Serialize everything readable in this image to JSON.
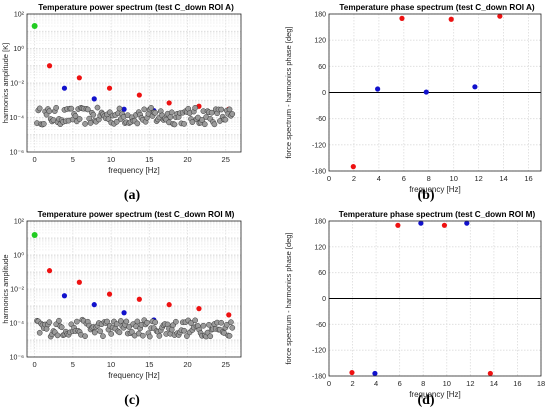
{
  "chart_data": [
    {
      "id": "a",
      "type": "scatter",
      "title": "Temperature power spectrum (test C_down ROI A)",
      "xlabel": "frequency [Hz]",
      "ylabel": "harmonics amplitude [K]",
      "caption": "(a)",
      "yscale": "log",
      "xlim": [
        -1,
        27
      ],
      "ylim": [
        1e-06,
        100
      ],
      "xticks": [
        0,
        5,
        10,
        15,
        20,
        25
      ],
      "xtick_labels": [
        "0",
        "5",
        "10",
        "15",
        "20",
        "25"
      ],
      "yticks": [
        1e-06,
        0.0001,
        0.01,
        1,
        100
      ],
      "ytick_labels": [
        "10⁻⁶",
        "10⁻⁴",
        "10⁻²",
        "10⁰",
        "10²"
      ],
      "grid": true,
      "series": [
        {
          "color": "#22cc22",
          "x": [
            0
          ],
          "y": [
            20
          ]
        },
        {
          "color": "#ee1111",
          "x": [
            1.95,
            5.85,
            9.8,
            13.7,
            17.6,
            21.5,
            25.4
          ],
          "y": [
            0.1,
            0.02,
            0.005,
            0.002,
            0.0007,
            0.00045,
            0.0003
          ]
        },
        {
          "color": "#1111cc",
          "x": [
            3.9,
            7.8,
            11.7,
            15.6
          ],
          "y": [
            0.005,
            0.0012,
            0.0003,
            0.00025
          ]
        },
        {
          "color": "#888888",
          "noise": true,
          "y_center": 0.00012
        }
      ]
    },
    {
      "id": "b",
      "type": "scatter",
      "title": "Temperature phase spectrum (test C_down ROI A)",
      "xlabel": "frequency [Hz]",
      "ylabel": "force spectrum - harmonics phase [deg]",
      "caption": "(b)",
      "xlim": [
        0,
        17
      ],
      "ylim": [
        -180,
        180
      ],
      "xticks": [
        0,
        2,
        4,
        6,
        8,
        10,
        12,
        14,
        16
      ],
      "yticks": [
        -180,
        -120,
        -60,
        0,
        60,
        120,
        180
      ],
      "grid": true,
      "zero_line": true,
      "series": [
        {
          "color": "#ee1111",
          "x": [
            1.95,
            5.85,
            9.8,
            13.7
          ],
          "y": [
            -170,
            170,
            168,
            175
          ]
        },
        {
          "color": "#1111cc",
          "x": [
            3.9,
            7.8,
            11.7
          ],
          "y": [
            8,
            1,
            13
          ]
        }
      ]
    },
    {
      "id": "c",
      "type": "scatter",
      "title": "Temperature power spectrum (test C_down ROI M)",
      "xlabel": "frequency [Hz]",
      "ylabel": "harmonics amplitude",
      "caption": "(c)",
      "yscale": "log",
      "xlim": [
        -1,
        27
      ],
      "ylim": [
        1e-06,
        100
      ],
      "xticks": [
        0,
        5,
        10,
        15,
        20,
        25
      ],
      "xtick_labels": [
        "0",
        "5",
        "10",
        "15",
        "20",
        "25"
      ],
      "yticks": [
        1e-06,
        0.0001,
        0.01,
        1,
        100
      ],
      "ytick_labels": [
        "10⁻⁶",
        "10⁻⁴",
        "10⁻²",
        "10⁰",
        "10²"
      ],
      "grid": true,
      "series": [
        {
          "color": "#22cc22",
          "x": [
            0
          ],
          "y": [
            15
          ]
        },
        {
          "color": "#ee1111",
          "x": [
            1.95,
            5.85,
            9.8,
            13.7,
            17.6,
            21.5,
            25.4
          ],
          "y": [
            0.12,
            0.025,
            0.005,
            0.0025,
            0.0012,
            0.0007,
            0.0003
          ]
        },
        {
          "color": "#1111cc",
          "x": [
            3.9,
            7.8,
            11.7,
            15.6
          ],
          "y": [
            0.004,
            0.0012,
            0.0004,
            0.00015
          ]
        },
        {
          "color": "#888888",
          "noise": true,
          "y_center": 5e-05
        }
      ]
    },
    {
      "id": "d",
      "type": "scatter",
      "title": "Temperature phase spectrum (test C_down ROI M)",
      "xlabel": "frequency [Hz]",
      "ylabel": "force spectrum - harmonics phase [deg]",
      "caption": "(d)",
      "xlim": [
        0,
        18
      ],
      "ylim": [
        -180,
        180
      ],
      "xticks": [
        0,
        2,
        4,
        6,
        8,
        10,
        12,
        14,
        16,
        18
      ],
      "yticks": [
        -180,
        -120,
        -60,
        0,
        60,
        120,
        180
      ],
      "grid": true,
      "zero_line": true,
      "series": [
        {
          "color": "#ee1111",
          "x": [
            1.95,
            5.85,
            9.8,
            13.7
          ],
          "y": [
            -172,
            170,
            170,
            -174
          ]
        },
        {
          "color": "#1111cc",
          "x": [
            3.9,
            7.8,
            11.7
          ],
          "y": [
            -174,
            175,
            175
          ]
        }
      ]
    }
  ]
}
